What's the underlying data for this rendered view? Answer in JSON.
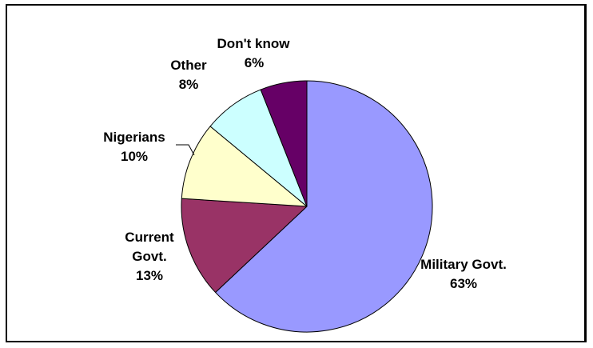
{
  "chart_data": {
    "type": "pie",
    "title": "",
    "start_angle_deg": 0,
    "direction": "clockwise",
    "slices": [
      {
        "label_lines": [
          "Military Govt.",
          "63%"
        ],
        "value": 63,
        "color": "#9999ff"
      },
      {
        "label_lines": [
          "Current",
          "Govt.",
          "13%"
        ],
        "value": 13,
        "color": "#993366"
      },
      {
        "label_lines": [
          "Nigerians",
          "10%"
        ],
        "value": 10,
        "color": "#ffffcc"
      },
      {
        "label_lines": [
          "Other",
          "8%"
        ],
        "value": 8,
        "color": "#ccffff"
      },
      {
        "label_lines": [
          "Don't know",
          "6%"
        ],
        "value": 6,
        "color": "#660066"
      }
    ]
  }
}
